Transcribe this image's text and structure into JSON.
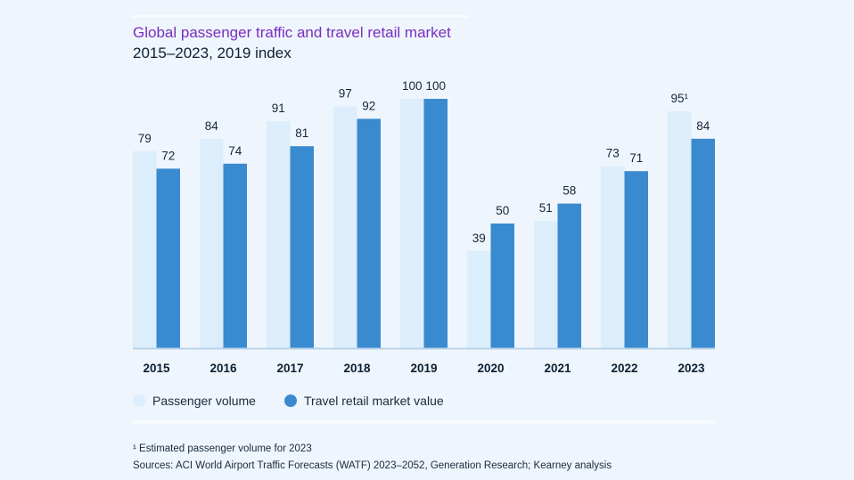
{
  "chart_data": {
    "type": "bar",
    "title": "Global passenger traffic and travel retail market",
    "subtitle": "2015–2023, 2019 index",
    "categories": [
      "2015",
      "2016",
      "2017",
      "2018",
      "2019",
      "2020",
      "2021",
      "2022",
      "2023"
    ],
    "series": [
      {
        "name": "Passenger volume",
        "color": "#dcedfb",
        "values": [
          79,
          84,
          91,
          97,
          100,
          39,
          51,
          73,
          95
        ],
        "labels": [
          "79",
          "84",
          "91",
          "97",
          "100",
          "39",
          "51",
          "73",
          "95¹"
        ]
      },
      {
        "name": "Travel retail market value",
        "color": "#3a8ad0",
        "values": [
          72,
          74,
          81,
          92,
          100,
          50,
          58,
          71,
          84
        ],
        "labels": [
          "72",
          "74",
          "81",
          "92",
          "100",
          "50",
          "58",
          "71",
          "84"
        ]
      }
    ],
    "ylim": [
      0,
      100
    ],
    "grid": false,
    "legend": "bottom-left"
  },
  "footnote": "¹ Estimated passenger volume for 2023",
  "sources": "Sources: ACI World Airport Traffic Forecasts (WATF) 2023–2052, Generation Research; Kearney analysis"
}
